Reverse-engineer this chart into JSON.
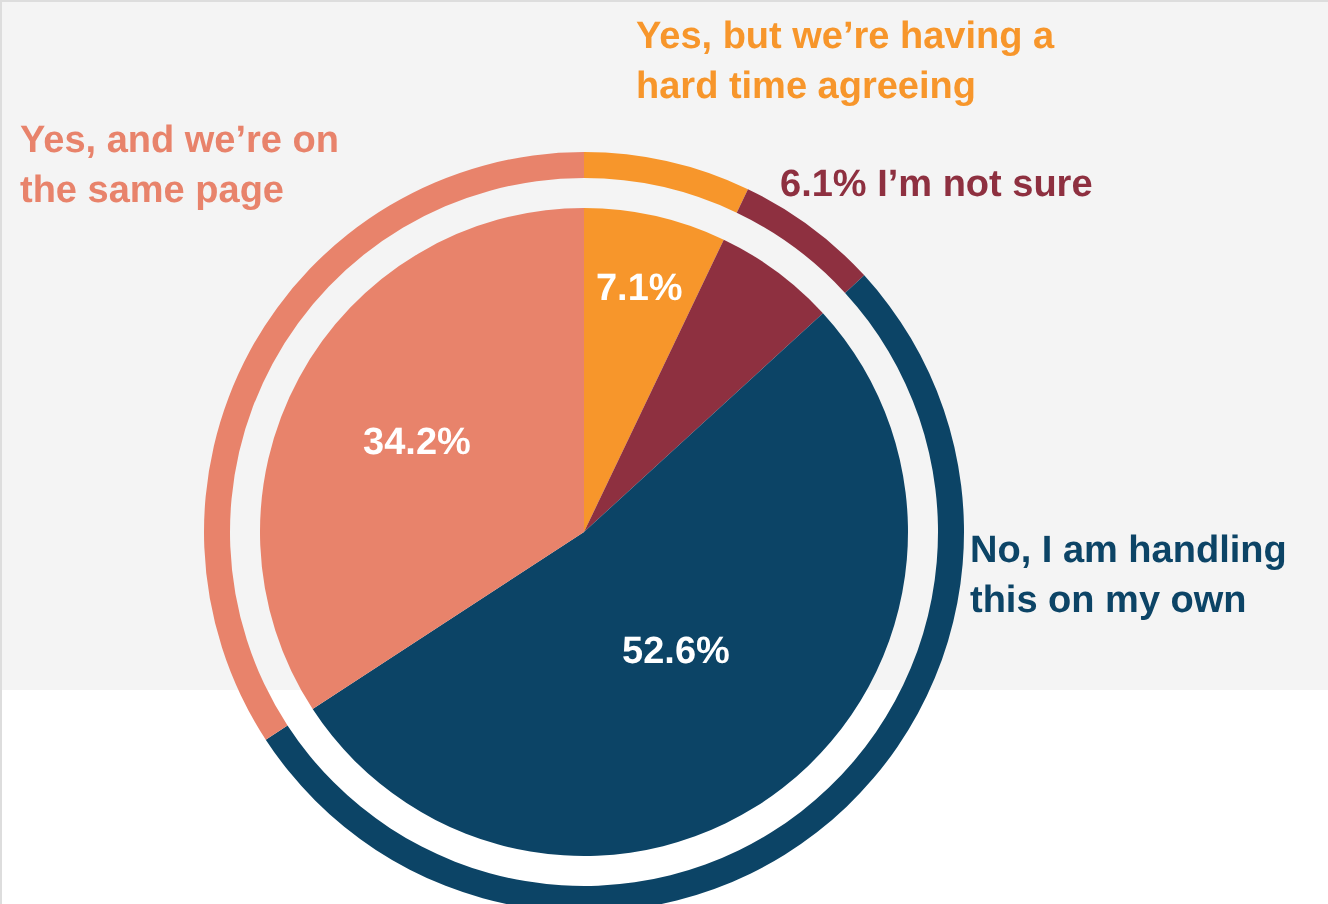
{
  "chart_data": {
    "type": "pie",
    "categories": [
      "Yes, but we’re having a hard time agreeing",
      "I’m not sure",
      "No, I am handling this on my own",
      "Yes, and we’re on the same page"
    ],
    "colors": [
      "#f7962b",
      "#8e3040",
      "#0c4466",
      "#e8836b"
    ],
    "series": [
      {
        "values": [
          7.1,
          6.1,
          52.6,
          34.2
        ],
        "value_labels": [
          "7.1%",
          "6.1%",
          "52.6%",
          "34.2%"
        ]
      },
      {
        "values": [
          7.1,
          6.1,
          52.6,
          34.2
        ]
      }
    ]
  }
}
